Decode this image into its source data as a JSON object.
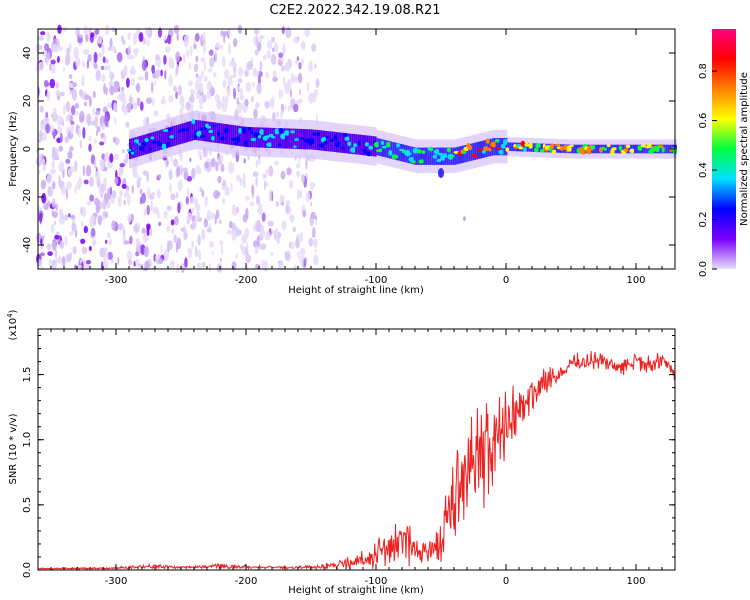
{
  "title": "C2E2.2022.342.19.08.R21",
  "chart_data": [
    {
      "type": "heatmap",
      "name": "spectrogram",
      "xlabel": "Height of straight line (km)",
      "ylabel": "Frequency (Hz)",
      "xlim": [
        -360,
        130
      ],
      "ylim": [
        -50,
        50
      ],
      "xticks": [
        -300,
        -200,
        -100,
        0,
        100
      ],
      "yticks": [
        -40,
        -20,
        0,
        20,
        40
      ],
      "ridge": {
        "x": [
          -290,
          -240,
          -200,
          -150,
          -100,
          -70,
          -40,
          -10,
          0,
          50,
          130
        ],
        "y": [
          0,
          8,
          5,
          4,
          1,
          -3,
          -3,
          1,
          1,
          0,
          0
        ]
      },
      "colorbar": {
        "label": "Normalized spectral amplitude",
        "ticks": [
          "0.0",
          "0.2",
          "0.4",
          "0.6",
          "0.8"
        ],
        "range": [
          0,
          0.97
        ],
        "colors": [
          "#e8ddf8",
          "#7b00ff",
          "#0000ff",
          "#00e0ff",
          "#00ff40",
          "#ffff00",
          "#ff8000",
          "#ff0000",
          "#ff0080"
        ]
      }
    },
    {
      "type": "line",
      "name": "snr",
      "xlabel": "Height of straight line (km)",
      "ylabel": "SNR (10 * v/v)",
      "scale_label": "(x10",
      "scale_exp": "4",
      "scale_close": ")",
      "xlim": [
        -360,
        130
      ],
      "ylim": [
        0,
        1.85
      ],
      "xticks": [
        -300,
        -200,
        -100,
        0,
        100
      ],
      "yticks": [
        "0.0",
        "0.5",
        "1.0",
        "1.5"
      ],
      "color": "#ee2222",
      "x": [
        -360,
        -300,
        -270,
        -250,
        -220,
        -180,
        -150,
        -130,
        -110,
        -100,
        -90,
        -80,
        -70,
        -60,
        -50,
        -40,
        -30,
        -20,
        -10,
        0,
        10,
        20,
        30,
        40,
        50,
        60,
        70,
        80,
        90,
        100,
        110,
        120,
        130
      ],
      "y": [
        0.01,
        0.015,
        0.03,
        0.02,
        0.03,
        0.02,
        0.02,
        0.04,
        0.07,
        0.12,
        0.18,
        0.22,
        0.16,
        0.14,
        0.25,
        0.55,
        0.8,
        0.85,
        0.95,
        1.15,
        1.25,
        1.35,
        1.45,
        1.5,
        1.58,
        1.6,
        1.62,
        1.58,
        1.55,
        1.6,
        1.58,
        1.62,
        1.5
      ],
      "spread": [
        0.005,
        0.008,
        0.02,
        0.01,
        0.02,
        0.01,
        0.015,
        0.03,
        0.08,
        0.12,
        0.16,
        0.18,
        0.14,
        0.12,
        0.25,
        0.35,
        0.4,
        0.45,
        0.4,
        0.3,
        0.2,
        0.15,
        0.1,
        0.08,
        0.08,
        0.08,
        0.08,
        0.08,
        0.08,
        0.07,
        0.07,
        0.06,
        0.05
      ]
    }
  ]
}
